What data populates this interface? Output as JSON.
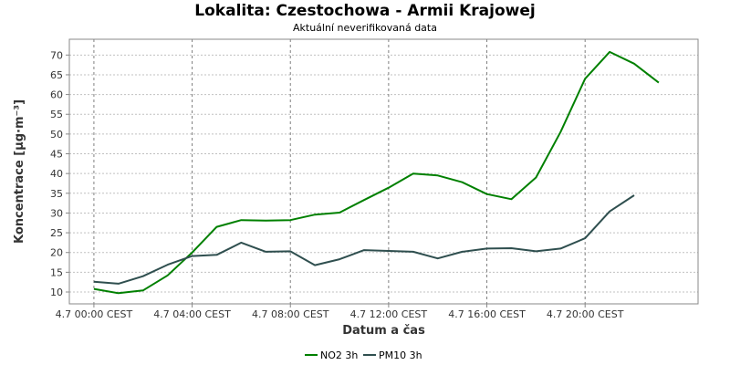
{
  "chart_data": {
    "type": "line",
    "title": "Lokalita: Czestochowa - Armii Krajowej",
    "subtitle": "Aktuální neverifikovaná data",
    "xlabel": "Datum a čas",
    "ylabel": "Koncentrace [µg·m⁻³]",
    "x_ticks": [
      {
        "hour": 0,
        "label": "4.7 00:00 CEST"
      },
      {
        "hour": 4,
        "label": "4.7 04:00 CEST"
      },
      {
        "hour": 8,
        "label": "4.7 08:00 CEST"
      },
      {
        "hour": 12,
        "label": "4.7 12:00 CEST"
      },
      {
        "hour": 16,
        "label": "4.7 16:00 CEST"
      },
      {
        "hour": 20,
        "label": "4.7 20:00 CEST"
      }
    ],
    "xlim": [
      -1,
      24.6
    ],
    "ylim": [
      7,
      74
    ],
    "y_ticks": [
      10,
      15,
      20,
      25,
      30,
      35,
      40,
      45,
      50,
      55,
      60,
      65,
      70
    ],
    "x": [
      0,
      1,
      2,
      3,
      4,
      5,
      6,
      7,
      8,
      9,
      10,
      11,
      12,
      13,
      14,
      15,
      16,
      17,
      18,
      19,
      20,
      21,
      22,
      23
    ],
    "series": [
      {
        "name": "NO2 3h",
        "color": "#008000",
        "values": [
          10.8,
          9.7,
          10.4,
          14.2,
          20.0,
          26.5,
          28.2,
          28.1,
          28.2,
          29.6,
          30.1,
          33.3,
          36.4,
          40.0,
          39.5,
          37.8,
          34.8,
          33.5,
          39.0,
          50.5,
          64.0,
          70.8,
          67.8,
          63.0
        ]
      },
      {
        "name": "PM10 3h",
        "color": "#2f4f4f",
        "values": [
          12.6,
          12.1,
          14.0,
          16.9,
          19.1,
          19.4,
          22.5,
          20.2,
          20.3,
          16.8,
          18.3,
          20.6,
          20.4,
          20.2,
          18.5,
          20.2,
          21.0,
          21.1,
          20.3,
          21.0,
          23.6,
          30.4,
          34.5,
          null
        ]
      }
    ],
    "grid": true,
    "legend_position": "bottom-center"
  }
}
